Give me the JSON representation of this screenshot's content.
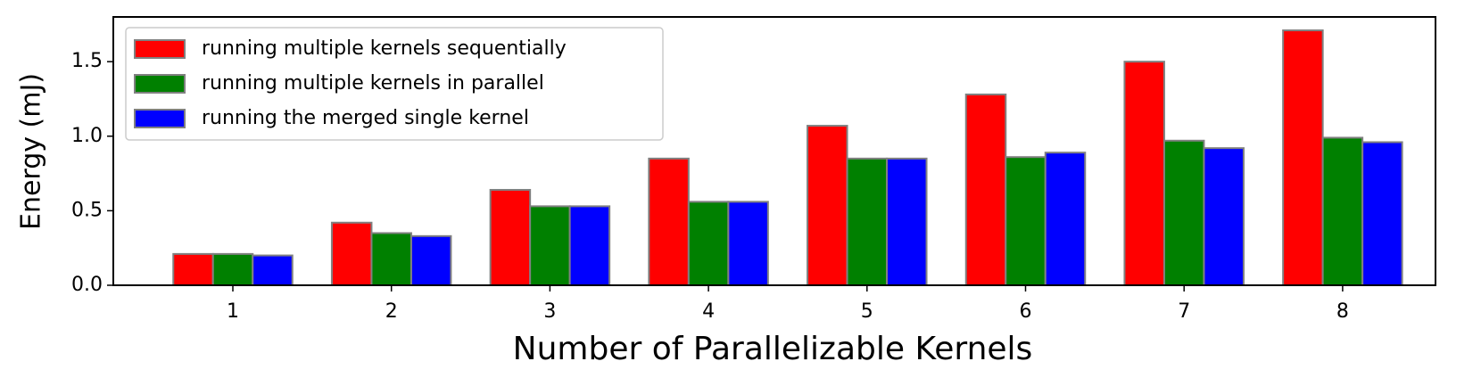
{
  "chart_data": {
    "type": "bar",
    "x_label": "Number of Parallelizable Kernels",
    "y_label": "Energy (mJ)",
    "categories": [
      "1",
      "2",
      "3",
      "4",
      "5",
      "6",
      "7",
      "8"
    ],
    "series": [
      {
        "name": "running multiple kernels sequentially",
        "color": "#ff0000",
        "values": [
          0.21,
          0.42,
          0.64,
          0.85,
          1.07,
          1.28,
          1.5,
          1.71
        ]
      },
      {
        "name": "running multiple kernels in parallel",
        "color": "#008000",
        "values": [
          0.21,
          0.35,
          0.53,
          0.56,
          0.85,
          0.86,
          0.97,
          0.99
        ]
      },
      {
        "name": "running the merged single kernel",
        "color": "#0000ff",
        "values": [
          0.2,
          0.33,
          0.53,
          0.56,
          0.85,
          0.89,
          0.92,
          0.96
        ]
      }
    ],
    "ylim": [
      0,
      1.8
    ],
    "yticks": [
      {
        "value": 0,
        "label": "0.0"
      },
      {
        "value": 0.5,
        "label": "0.5"
      },
      {
        "value": 1,
        "label": "1.0"
      },
      {
        "value": 1.5,
        "label": "1.5"
      }
    ],
    "legend": "upper left"
  }
}
